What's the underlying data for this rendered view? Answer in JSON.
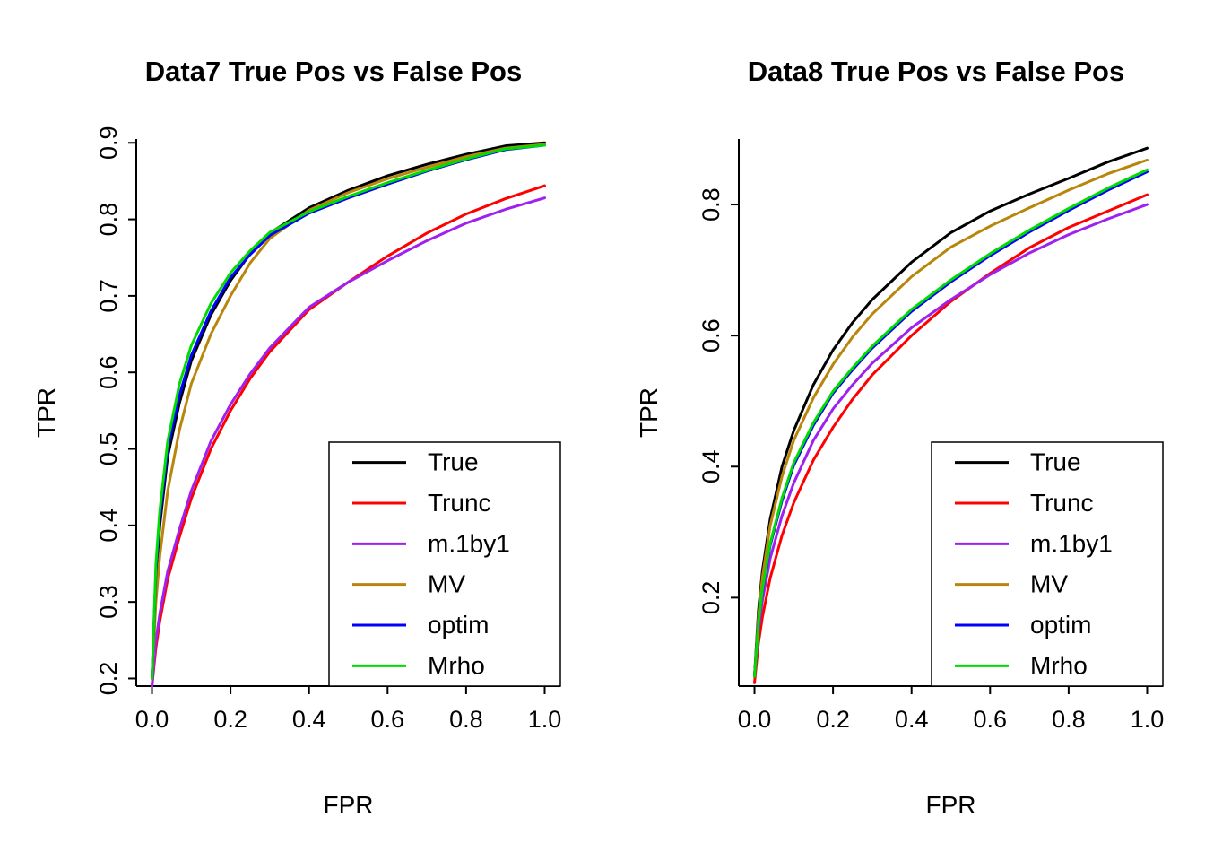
{
  "page": {
    "background": "#ffffff"
  },
  "chart_data": [
    {
      "type": "line",
      "title": "Data7 True Pos vs False Pos",
      "xlabel": "FPR",
      "ylabel": "TPR",
      "xlim": [
        0,
        1
      ],
      "ylim": [
        0.19,
        0.905
      ],
      "xticks": [
        "0.0",
        "0.2",
        "0.4",
        "0.6",
        "0.8",
        "1.0"
      ],
      "yticks": [
        "0.2",
        "0.3",
        "0.4",
        "0.5",
        "0.6",
        "0.7",
        "0.8",
        "0.9"
      ],
      "grid": false,
      "x": [
        0,
        0.01,
        0.02,
        0.04,
        0.07,
        0.1,
        0.15,
        0.2,
        0.25,
        0.3,
        0.4,
        0.5,
        0.6,
        0.7,
        0.8,
        0.9,
        1.0
      ],
      "series": [
        {
          "name": "True",
          "color": "#000000",
          "values": [
            0.2,
            0.33,
            0.4,
            0.49,
            0.56,
            0.615,
            0.675,
            0.72,
            0.755,
            0.782,
            0.815,
            0.838,
            0.857,
            0.872,
            0.885,
            0.896,
            0.9
          ]
        },
        {
          "name": "Trunc",
          "color": "#FF0000",
          "values": [
            0.19,
            0.24,
            0.275,
            0.33,
            0.385,
            0.435,
            0.5,
            0.55,
            0.592,
            0.627,
            0.682,
            0.718,
            0.752,
            0.782,
            0.807,
            0.827,
            0.844
          ]
        },
        {
          "name": "m.1by1",
          "color": "#A020F0",
          "values": [
            0.19,
            0.25,
            0.285,
            0.34,
            0.395,
            0.445,
            0.51,
            0.558,
            0.598,
            0.632,
            0.685,
            0.718,
            0.746,
            0.772,
            0.795,
            0.813,
            0.828
          ]
        },
        {
          "name": "MV",
          "color": "#B8860B",
          "values": [
            0.2,
            0.3,
            0.36,
            0.445,
            0.525,
            0.585,
            0.65,
            0.7,
            0.743,
            0.775,
            0.812,
            0.835,
            0.853,
            0.868,
            0.882,
            0.893,
            0.898
          ]
        },
        {
          "name": "optim",
          "color": "#0000FF",
          "values": [
            0.2,
            0.34,
            0.41,
            0.5,
            0.57,
            0.622,
            0.68,
            0.724,
            0.754,
            0.779,
            0.808,
            0.828,
            0.846,
            0.863,
            0.878,
            0.891,
            0.897
          ]
        },
        {
          "name": "Mrho",
          "color": "#00DC00",
          "values": [
            0.2,
            0.35,
            0.42,
            0.51,
            0.585,
            0.635,
            0.69,
            0.73,
            0.759,
            0.783,
            0.81,
            0.83,
            0.848,
            0.864,
            0.879,
            0.892,
            0.897
          ]
        }
      ],
      "legend": {
        "position": "bottomright",
        "entries": [
          "True",
          "Trunc",
          "m.1by1",
          "MV",
          "optim",
          "Mrho"
        ]
      }
    },
    {
      "type": "line",
      "title": "Data8 True Pos vs False Pos",
      "xlabel": "FPR",
      "ylabel": "TPR",
      "xlim": [
        0,
        1
      ],
      "ylim": [
        0.065,
        0.9
      ],
      "xticks": [
        "0.0",
        "0.2",
        "0.4",
        "0.6",
        "0.8",
        "1.0"
      ],
      "yticks": [
        "0.2",
        "0.4",
        "0.6",
        "0.8"
      ],
      "grid": false,
      "x": [
        0,
        0.01,
        0.02,
        0.04,
        0.07,
        0.1,
        0.15,
        0.2,
        0.25,
        0.3,
        0.4,
        0.5,
        0.6,
        0.7,
        0.8,
        0.9,
        1.0
      ],
      "series": [
        {
          "name": "True",
          "color": "#000000",
          "values": [
            0.08,
            0.18,
            0.24,
            0.32,
            0.4,
            0.455,
            0.525,
            0.578,
            0.62,
            0.655,
            0.712,
            0.757,
            0.79,
            0.816,
            0.84,
            0.865,
            0.886
          ]
        },
        {
          "name": "Trunc",
          "color": "#FF0000",
          "values": [
            0.07,
            0.13,
            0.17,
            0.23,
            0.295,
            0.345,
            0.41,
            0.46,
            0.503,
            0.54,
            0.6,
            0.652,
            0.695,
            0.734,
            0.765,
            0.79,
            0.815
          ]
        },
        {
          "name": "m.1by1",
          "color": "#A020F0",
          "values": [
            0.08,
            0.15,
            0.195,
            0.26,
            0.325,
            0.375,
            0.44,
            0.488,
            0.525,
            0.558,
            0.612,
            0.655,
            0.693,
            0.726,
            0.754,
            0.778,
            0.8
          ]
        },
        {
          "name": "MV",
          "color": "#B8860B",
          "values": [
            0.08,
            0.17,
            0.23,
            0.31,
            0.385,
            0.44,
            0.505,
            0.556,
            0.598,
            0.633,
            0.69,
            0.735,
            0.767,
            0.795,
            0.822,
            0.847,
            0.868
          ]
        },
        {
          "name": "optim",
          "color": "#0000FF",
          "values": [
            0.08,
            0.16,
            0.21,
            0.28,
            0.348,
            0.402,
            0.463,
            0.512,
            0.548,
            0.581,
            0.637,
            0.682,
            0.722,
            0.758,
            0.791,
            0.822,
            0.85
          ]
        },
        {
          "name": "Mrho",
          "color": "#00DC00",
          "values": [
            0.08,
            0.16,
            0.212,
            0.283,
            0.352,
            0.406,
            0.467,
            0.515,
            0.551,
            0.584,
            0.64,
            0.685,
            0.725,
            0.761,
            0.794,
            0.825,
            0.853
          ]
        }
      ],
      "legend": {
        "position": "bottomright",
        "entries": [
          "True",
          "Trunc",
          "m.1by1",
          "MV",
          "optim",
          "Mrho"
        ]
      }
    }
  ]
}
